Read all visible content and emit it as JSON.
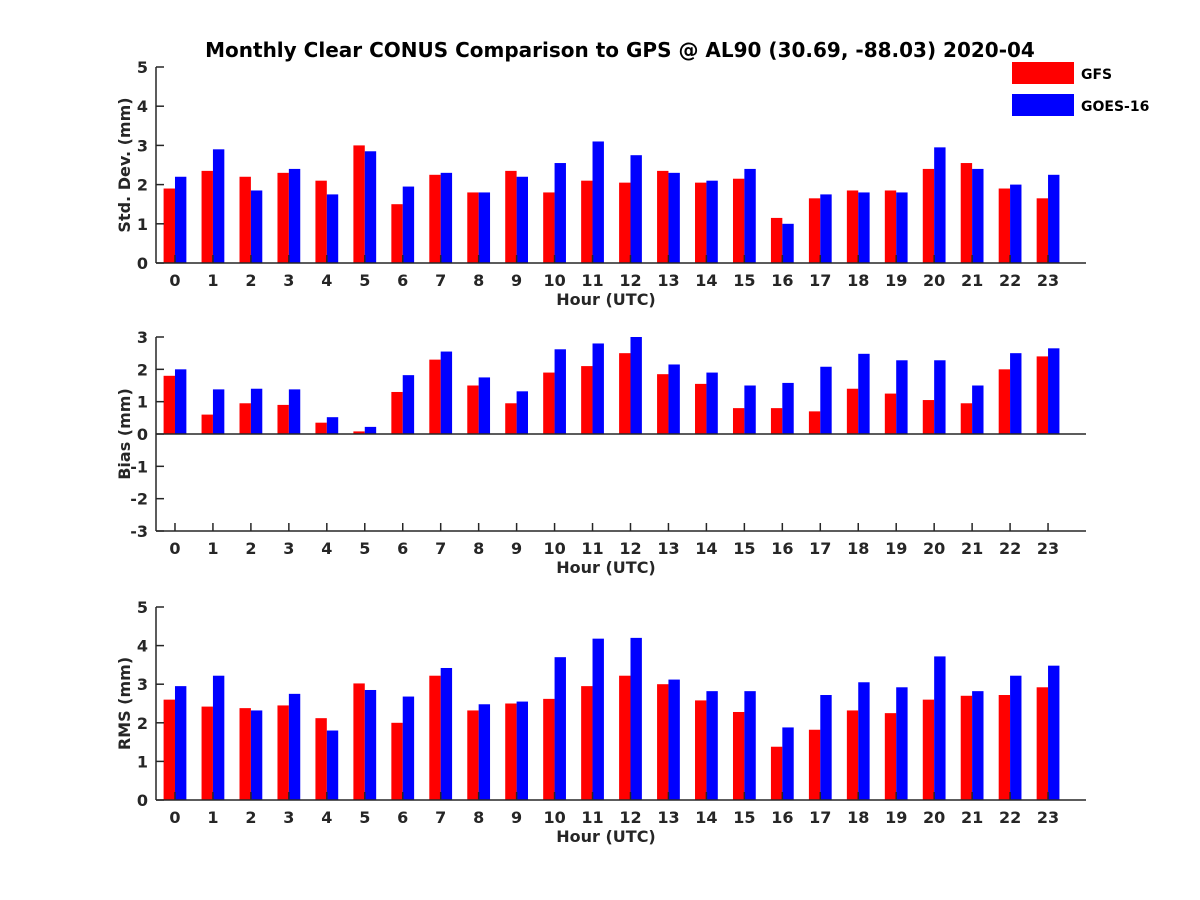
{
  "figure": {
    "title": "Monthly Clear CONUS Comparison to GPS @ AL90 (30.69, -88.03) 2020-04"
  },
  "legend": {
    "placement": "top-right",
    "items": [
      {
        "label": "GFS",
        "color": "#ff0000"
      },
      {
        "label": "GOES-16",
        "color": "#0000ff"
      }
    ]
  },
  "chart_data": [
    {
      "type": "bar",
      "ylabel": "Std. Dev. (mm)",
      "xlabel": "Hour (UTC)",
      "ylim": [
        0,
        5
      ],
      "yticks": [
        0,
        1,
        2,
        3,
        4,
        5
      ],
      "categories": [
        "0",
        "1",
        "2",
        "3",
        "4",
        "5",
        "6",
        "7",
        "8",
        "9",
        "10",
        "11",
        "12",
        "13",
        "14",
        "15",
        "16",
        "17",
        "18",
        "19",
        "20",
        "21",
        "22",
        "23"
      ],
      "series": [
        {
          "name": "GFS",
          "color": "#ff0000",
          "values": [
            1.9,
            2.35,
            2.2,
            2.3,
            2.1,
            3.0,
            1.5,
            2.25,
            1.8,
            2.35,
            1.8,
            2.1,
            2.05,
            2.35,
            2.05,
            2.15,
            1.15,
            1.65,
            1.85,
            1.85,
            2.4,
            2.55,
            1.9,
            1.65
          ]
        },
        {
          "name": "GOES-16",
          "color": "#0000ff",
          "values": [
            2.2,
            2.9,
            1.85,
            2.4,
            1.75,
            2.85,
            1.95,
            2.3,
            1.8,
            2.2,
            2.55,
            3.1,
            2.75,
            2.3,
            2.1,
            2.4,
            1.0,
            1.75,
            1.8,
            1.8,
            2.95,
            2.4,
            2.0,
            2.25
          ]
        }
      ]
    },
    {
      "type": "bar",
      "ylabel": "Bias (mm)",
      "xlabel": "Hour (UTC)",
      "ylim": [
        -3,
        3
      ],
      "yticks": [
        -3,
        -2,
        -1,
        0,
        1,
        2,
        3
      ],
      "categories": [
        "0",
        "1",
        "2",
        "3",
        "4",
        "5",
        "6",
        "7",
        "8",
        "9",
        "10",
        "11",
        "12",
        "13",
        "14",
        "15",
        "16",
        "17",
        "18",
        "19",
        "20",
        "21",
        "22",
        "23"
      ],
      "series": [
        {
          "name": "GFS",
          "color": "#ff0000",
          "values": [
            1.8,
            0.6,
            0.95,
            0.9,
            0.35,
            0.08,
            1.3,
            2.3,
            1.5,
            0.95,
            1.9,
            2.1,
            2.5,
            1.85,
            1.55,
            0.8,
            0.8,
            0.7,
            1.4,
            1.25,
            1.05,
            0.95,
            2.0,
            2.4
          ]
        },
        {
          "name": "GOES-16",
          "color": "#0000ff",
          "values": [
            2.0,
            1.38,
            1.4,
            1.38,
            0.52,
            0.22,
            1.82,
            2.55,
            1.75,
            1.32,
            2.62,
            2.8,
            3.0,
            2.15,
            1.9,
            1.5,
            1.58,
            2.08,
            2.48,
            2.28,
            2.28,
            1.5,
            2.5,
            2.65
          ]
        }
      ]
    },
    {
      "type": "bar",
      "ylabel": "RMS (mm)",
      "xlabel": "Hour (UTC)",
      "ylim": [
        0,
        5
      ],
      "yticks": [
        0,
        1,
        2,
        3,
        4,
        5
      ],
      "categories": [
        "0",
        "1",
        "2",
        "3",
        "4",
        "5",
        "6",
        "7",
        "8",
        "9",
        "10",
        "11",
        "12",
        "13",
        "14",
        "15",
        "16",
        "17",
        "18",
        "19",
        "20",
        "21",
        "22",
        "23"
      ],
      "series": [
        {
          "name": "GFS",
          "color": "#ff0000",
          "values": [
            2.6,
            2.42,
            2.38,
            2.45,
            2.12,
            3.02,
            2.0,
            3.22,
            2.32,
            2.5,
            2.62,
            2.95,
            3.22,
            3.0,
            2.58,
            2.28,
            1.38,
            1.82,
            2.32,
            2.25,
            2.6,
            2.7,
            2.72,
            2.92
          ]
        },
        {
          "name": "GOES-16",
          "color": "#0000ff",
          "values": [
            2.95,
            3.22,
            2.32,
            2.75,
            1.8,
            2.85,
            2.68,
            3.42,
            2.48,
            2.55,
            3.7,
            4.18,
            4.2,
            3.12,
            2.82,
            2.82,
            1.88,
            2.72,
            3.05,
            2.92,
            3.72,
            2.82,
            3.22,
            3.48
          ]
        }
      ]
    }
  ]
}
